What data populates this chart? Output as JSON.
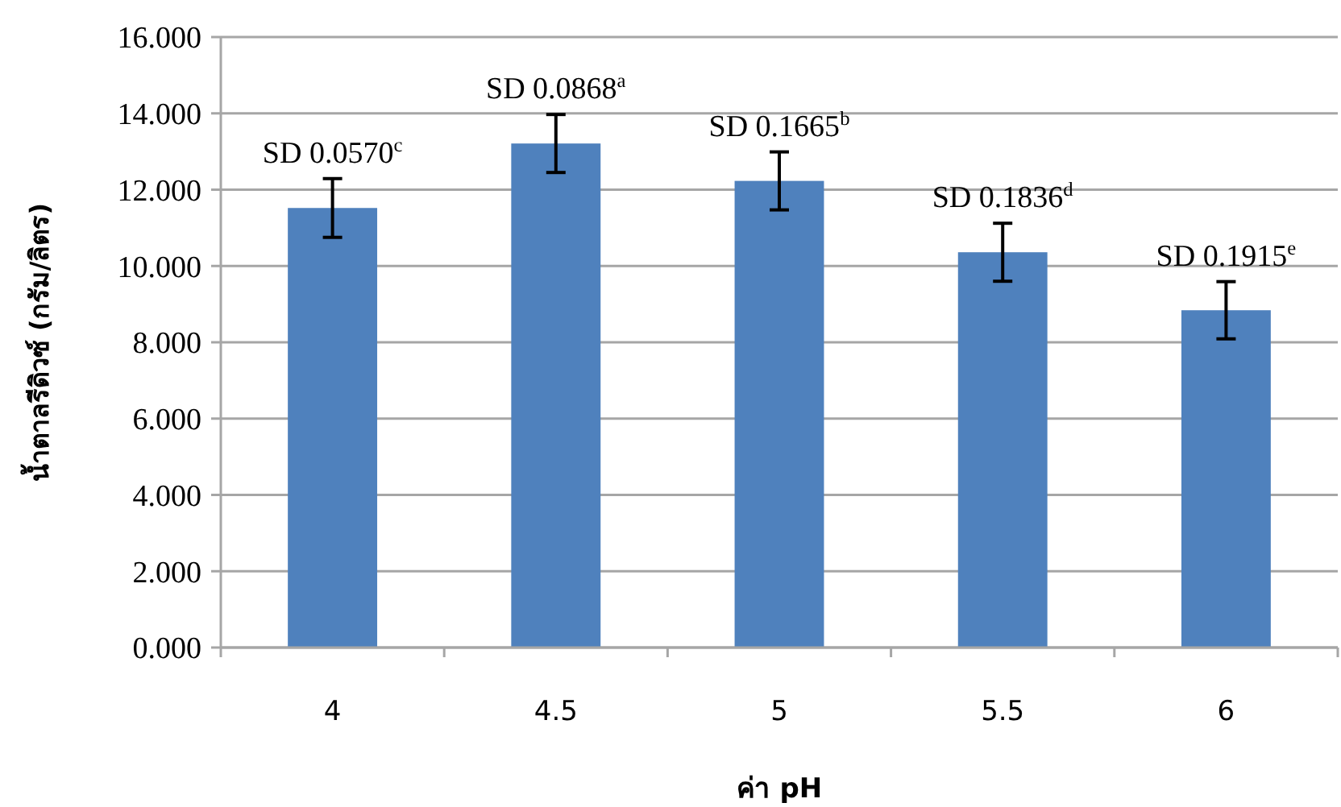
{
  "chart_data": {
    "type": "bar",
    "xlabel": "ค่า pH",
    "ylabel": "น้ำตาลรีดิวซ์ (กรัม/ลิตร)",
    "categories": [
      "4",
      "4.5",
      "5",
      "5.5",
      "6"
    ],
    "values": [
      11.52,
      13.21,
      12.23,
      10.36,
      8.84
    ],
    "errors": [
      0.77,
      0.76,
      0.76,
      0.76,
      0.75
    ],
    "color": "#4f81bd",
    "ylim": [
      0,
      16
    ],
    "yticks": [
      {
        "value": 0,
        "label": "0.000"
      },
      {
        "value": 2,
        "label": "2.000"
      },
      {
        "value": 4,
        "label": "4.000"
      },
      {
        "value": 6,
        "label": "6.000"
      },
      {
        "value": 8,
        "label": "8.000"
      },
      {
        "value": 10,
        "label": "10.000"
      },
      {
        "value": 12,
        "label": "12.000"
      },
      {
        "value": 14,
        "label": "14.000"
      },
      {
        "value": 16,
        "label": "16.000"
      }
    ],
    "grid": "y",
    "annotations": [
      "SD 0.0570$^{c}$",
      "SD 0.0868$^{a}$",
      "SD 0.1665$^{b}$",
      "SD 0.1836$^{d}$",
      "SD 0.1915$^{e}$"
    ]
  }
}
